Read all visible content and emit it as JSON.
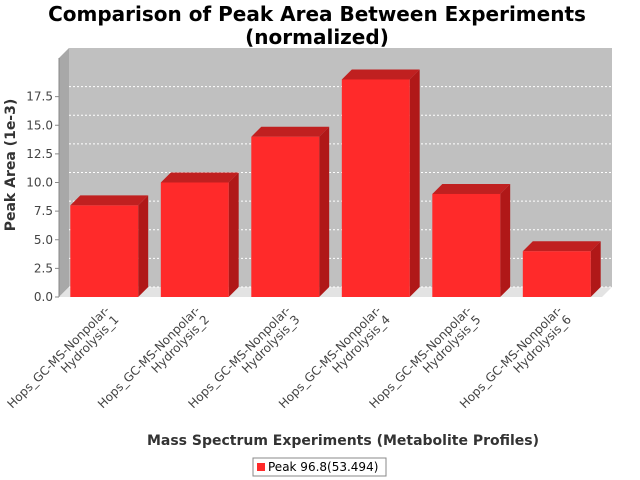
{
  "chart_data": {
    "type": "bar",
    "title_line1": "Comparison of Peak Area Between Experiments",
    "title_line2": "(normalized)",
    "xlabel": "Mass Spectrum Experiments (Metabolite Profiles)",
    "ylabel": "Peak Area (1e-3)",
    "categories": [
      [
        "Hops_GC-MS-Nonpolar-",
        "Hydrolysis_1"
      ],
      [
        "Hops_GC-MS-Nonpolar-",
        "Hydrolysis_2"
      ],
      [
        "Hops_GC-MS-Nonpolar-",
        "Hydrolysis_3"
      ],
      [
        "Hops_GC-MS-Nonpolar-",
        "Hydrolysis_4"
      ],
      [
        "Hops_GC-MS-Nonpolar-",
        "Hydrolysis_5"
      ],
      [
        "Hops_GC-MS-Nonpolar-",
        "Hydrolysis_6"
      ]
    ],
    "series": [
      {
        "name": "Peak 96.8(53.494)",
        "values": [
          8.0,
          10.0,
          14.0,
          19.0,
          9.0,
          4.0
        ],
        "color": "#ff2a2a"
      }
    ],
    "yticks": [
      "0.0",
      "2.5",
      "5.0",
      "7.5",
      "10.0",
      "12.5",
      "15.0",
      "17.5"
    ],
    "ylim": [
      0,
      20
    ],
    "grid": true,
    "legend_position": "bottom",
    "plot_background": "#c0c0c0"
  }
}
